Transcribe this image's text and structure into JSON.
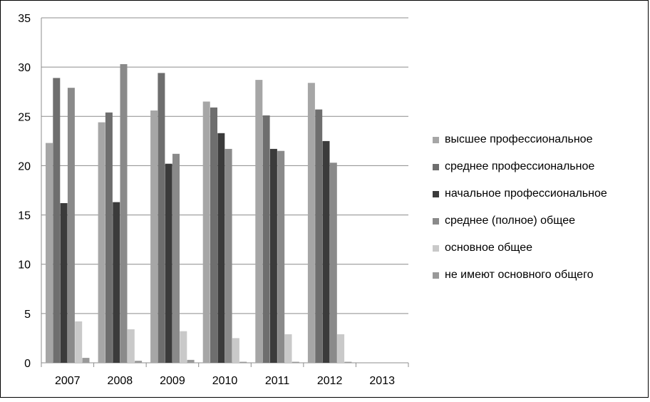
{
  "chart_data": {
    "type": "bar",
    "categories": [
      "2007",
      "2008",
      "2009",
      "2010",
      "2011",
      "2012",
      "2013"
    ],
    "ylim": [
      0,
      35
    ],
    "yticks": [
      "0",
      "5",
      "10",
      "15",
      "20",
      "25",
      "30",
      "35"
    ],
    "grid": true,
    "legend_position": "right",
    "series": [
      {
        "name": "высшее профессиональное",
        "color": "#a6a6a6",
        "values": [
          22.3,
          24.4,
          25.6,
          26.5,
          28.7,
          28.4,
          0
        ]
      },
      {
        "name": "среднее профессиональное",
        "color": "#6e6e6e",
        "values": [
          28.9,
          25.4,
          29.4,
          25.9,
          25.1,
          25.7,
          0
        ]
      },
      {
        "name": "начальное профессиональное",
        "color": "#3b3b3b",
        "values": [
          16.2,
          16.3,
          20.2,
          23.3,
          21.7,
          22.5,
          0
        ]
      },
      {
        "name": "среднее (полное) общее",
        "color": "#8a8a8a",
        "values": [
          27.9,
          30.3,
          21.2,
          21.7,
          21.5,
          20.3,
          0
        ]
      },
      {
        "name": "основное общее",
        "color": "#c9c9c9",
        "values": [
          4.2,
          3.4,
          3.2,
          2.5,
          2.9,
          2.9,
          0
        ]
      },
      {
        "name": "не имеют основного общего",
        "color": "#999999",
        "values": [
          0.5,
          0.2,
          0.3,
          0.1,
          0.1,
          0.1,
          0
        ]
      }
    ]
  }
}
